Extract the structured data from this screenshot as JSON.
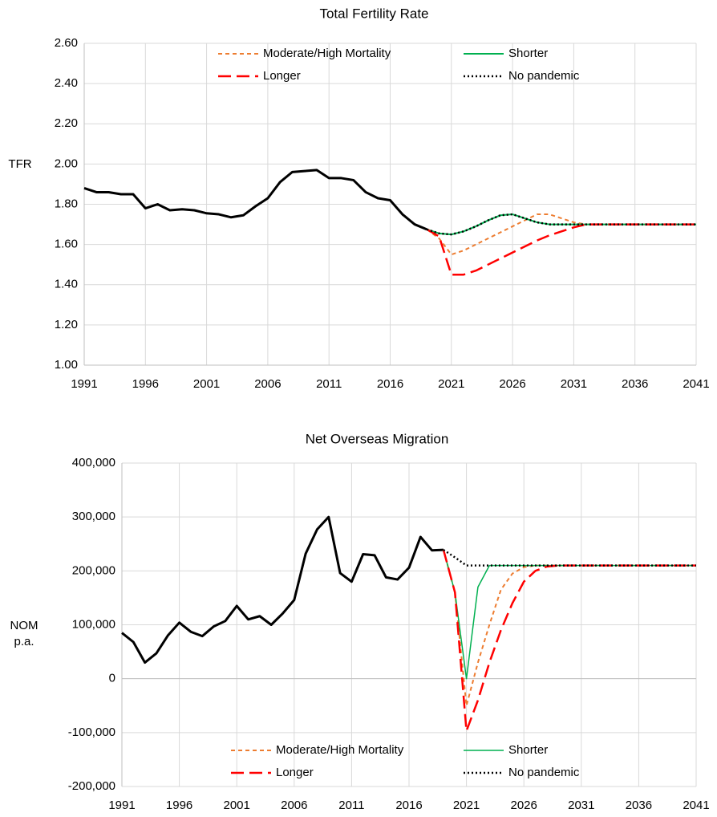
{
  "chart_data": [
    {
      "type": "line",
      "title": "Total Fertility Rate",
      "ylabel": "TFR",
      "x": [
        1991,
        1992,
        1993,
        1994,
        1995,
        1996,
        1997,
        1998,
        1999,
        2000,
        2001,
        2002,
        2003,
        2004,
        2005,
        2006,
        2007,
        2008,
        2009,
        2010,
        2011,
        2012,
        2013,
        2014,
        2015,
        2016,
        2017,
        2018,
        2019,
        2020,
        2021,
        2022,
        2023,
        2024,
        2025,
        2026,
        2027,
        2028,
        2029,
        2030,
        2031,
        2032,
        2033,
        2034,
        2035,
        2036,
        2037,
        2038,
        2039,
        2040,
        2041
      ],
      "series": [
        {
          "color": "#000000",
          "width": 3,
          "dash": "solid",
          "values": [
            1.88,
            1.86,
            1.86,
            1.85,
            1.85,
            1.78,
            1.8,
            1.77,
            1.775,
            1.77,
            1.755,
            1.75,
            1.735,
            1.745,
            1.79,
            1.83,
            1.91,
            1.96,
            1.965,
            1.97,
            1.93,
            1.93,
            1.92,
            1.86,
            1.83,
            1.82,
            1.75,
            1.7,
            1.675,
            null,
            null,
            null,
            null,
            null,
            null,
            null,
            null,
            null,
            null,
            null,
            null,
            null,
            null,
            null,
            null,
            null,
            null,
            null,
            null,
            null,
            null
          ]
        },
        {
          "name": "Moderate/High Mortality",
          "color": "#ed7d31",
          "width": 2,
          "dash": "dashed",
          "values": [
            null,
            null,
            null,
            null,
            null,
            null,
            null,
            null,
            null,
            null,
            null,
            null,
            null,
            null,
            null,
            null,
            null,
            null,
            null,
            null,
            null,
            null,
            null,
            null,
            null,
            null,
            null,
            null,
            1.675,
            1.63,
            1.55,
            1.57,
            1.6,
            1.63,
            1.66,
            1.69,
            1.72,
            1.75,
            1.75,
            1.73,
            1.71,
            1.7,
            1.7,
            1.7,
            1.7,
            1.7,
            1.7,
            1.7,
            1.7,
            1.7,
            1.7
          ]
        },
        {
          "name": "Shorter",
          "color": "#00b050",
          "width": 2,
          "dash": "solid",
          "values": [
            null,
            null,
            null,
            null,
            null,
            null,
            null,
            null,
            null,
            null,
            null,
            null,
            null,
            null,
            null,
            null,
            null,
            null,
            null,
            null,
            null,
            null,
            null,
            null,
            null,
            null,
            null,
            null,
            1.675,
            1.655,
            1.65,
            1.665,
            1.69,
            1.72,
            1.745,
            1.75,
            1.73,
            1.71,
            1.7,
            1.7,
            1.7,
            1.7,
            1.7,
            1.7,
            1.7,
            1.7,
            1.7,
            1.7,
            1.7,
            1.7,
            1.7
          ]
        },
        {
          "name": "Longer",
          "color": "#ff0000",
          "width": 2.5,
          "dash": "longdash",
          "values": [
            null,
            null,
            null,
            null,
            null,
            null,
            null,
            null,
            null,
            null,
            null,
            null,
            null,
            null,
            null,
            null,
            null,
            null,
            null,
            null,
            null,
            null,
            null,
            null,
            null,
            null,
            null,
            null,
            1.675,
            1.64,
            1.45,
            1.45,
            1.47,
            1.5,
            1.53,
            1.56,
            1.59,
            1.62,
            1.645,
            1.665,
            1.685,
            1.7,
            1.7,
            1.7,
            1.7,
            1.7,
            1.7,
            1.7,
            1.7,
            1.7,
            1.7
          ]
        },
        {
          "name": "No pandemic",
          "color": "#000000",
          "width": 2.5,
          "dash": "dotted",
          "values": [
            null,
            null,
            null,
            null,
            null,
            null,
            null,
            null,
            null,
            null,
            null,
            null,
            null,
            null,
            null,
            null,
            null,
            null,
            null,
            null,
            null,
            null,
            null,
            null,
            null,
            null,
            null,
            null,
            1.675,
            1.655,
            1.65,
            1.665,
            1.69,
            1.72,
            1.745,
            1.75,
            1.73,
            1.71,
            1.7,
            1.7,
            1.7,
            1.7,
            1.7,
            1.7,
            1.7,
            1.7,
            1.7,
            1.7,
            1.7,
            1.7,
            1.7
          ]
        }
      ],
      "xlim": [
        1991,
        2041
      ],
      "xticks": [
        1991,
        1996,
        2001,
        2006,
        2011,
        2016,
        2021,
        2026,
        2031,
        2036,
        2041
      ],
      "ylim": [
        1.0,
        2.6
      ],
      "yticks": [
        {
          "value": 1.0,
          "label": "1.00"
        },
        {
          "value": 1.2,
          "label": "1.20"
        },
        {
          "value": 1.4,
          "label": "1.40"
        },
        {
          "value": 1.6,
          "label": "1.60"
        },
        {
          "value": 1.8,
          "label": "1.80"
        },
        {
          "value": 2.0,
          "label": "2.00"
        },
        {
          "value": 2.2,
          "label": "2.20"
        },
        {
          "value": 2.4,
          "label": "2.40"
        },
        {
          "value": 2.6,
          "label": "2.60"
        }
      ],
      "grid": true,
      "legend": "upper center"
    },
    {
      "type": "line",
      "title": "Net Overseas Migration",
      "ylabel": "NOM p.a.",
      "x": [
        1991,
        1992,
        1993,
        1994,
        1995,
        1996,
        1997,
        1998,
        1999,
        2000,
        2001,
        2002,
        2003,
        2004,
        2005,
        2006,
        2007,
        2008,
        2009,
        2010,
        2011,
        2012,
        2013,
        2014,
        2015,
        2016,
        2017,
        2018,
        2019,
        2020,
        2021,
        2022,
        2023,
        2024,
        2025,
        2026,
        2027,
        2028,
        2029,
        2030,
        2031,
        2032,
        2033,
        2034,
        2035,
        2036,
        2037,
        2038,
        2039,
        2040,
        2041
      ],
      "series": [
        {
          "color": "#000000",
          "width": 3,
          "dash": "solid",
          "values": [
            85000,
            68000,
            30000,
            47000,
            80000,
            104000,
            87000,
            79000,
            97000,
            107000,
            135000,
            110000,
            116000,
            100000,
            121000,
            146000,
            232000,
            277000,
            300000,
            196000,
            180000,
            231000,
            229000,
            188000,
            184000,
            206000,
            263000,
            238000,
            239000,
            null,
            null,
            null,
            null,
            null,
            null,
            null,
            null,
            null,
            null,
            null,
            null,
            null,
            null,
            null,
            null,
            null,
            null,
            null,
            null,
            null,
            null
          ]
        },
        {
          "name": "Moderate/High Mortality",
          "color": "#ed7d31",
          "width": 2,
          "dash": "dashed",
          "values": [
            null,
            null,
            null,
            null,
            null,
            null,
            null,
            null,
            null,
            null,
            null,
            null,
            null,
            null,
            null,
            null,
            null,
            null,
            null,
            null,
            null,
            null,
            null,
            null,
            null,
            null,
            null,
            null,
            239000,
            160000,
            -50000,
            30000,
            100000,
            165000,
            195000,
            207000,
            210000,
            210000,
            210000,
            210000,
            210000,
            210000,
            210000,
            210000,
            210000,
            210000,
            210000,
            210000,
            210000,
            210000,
            210000
          ]
        },
        {
          "name": "Shorter",
          "color": "#00b050",
          "width": 1.5,
          "dash": "solid",
          "values": [
            null,
            null,
            null,
            null,
            null,
            null,
            null,
            null,
            null,
            null,
            null,
            null,
            null,
            null,
            null,
            null,
            null,
            null,
            null,
            null,
            null,
            null,
            null,
            null,
            null,
            null,
            null,
            null,
            239000,
            160000,
            0,
            170000,
            210000,
            210000,
            210000,
            210000,
            210000,
            210000,
            210000,
            210000,
            210000,
            210000,
            210000,
            210000,
            210000,
            210000,
            210000,
            210000,
            210000,
            210000,
            210000
          ]
        },
        {
          "name": "Longer",
          "color": "#ff0000",
          "width": 2.5,
          "dash": "longdash",
          "values": [
            null,
            null,
            null,
            null,
            null,
            null,
            null,
            null,
            null,
            null,
            null,
            null,
            null,
            null,
            null,
            null,
            null,
            null,
            null,
            null,
            null,
            null,
            null,
            null,
            null,
            null,
            null,
            null,
            239000,
            160000,
            -97000,
            -40000,
            30000,
            90000,
            140000,
            180000,
            200000,
            208000,
            210000,
            210000,
            210000,
            210000,
            210000,
            210000,
            210000,
            210000,
            210000,
            210000,
            210000,
            210000,
            210000
          ]
        },
        {
          "name": "No pandemic",
          "color": "#000000",
          "width": 2.5,
          "dash": "dotted",
          "values": [
            null,
            null,
            null,
            null,
            null,
            null,
            null,
            null,
            null,
            null,
            null,
            null,
            null,
            null,
            null,
            null,
            null,
            null,
            null,
            null,
            null,
            null,
            null,
            null,
            null,
            null,
            null,
            null,
            239000,
            225000,
            210000,
            210000,
            210000,
            210000,
            210000,
            210000,
            210000,
            210000,
            210000,
            210000,
            210000,
            210000,
            210000,
            210000,
            210000,
            210000,
            210000,
            210000,
            210000,
            210000,
            210000
          ]
        }
      ],
      "xlim": [
        1991,
        2041
      ],
      "xticks": [
        1991,
        1996,
        2001,
        2006,
        2011,
        2016,
        2021,
        2026,
        2031,
        2036,
        2041
      ],
      "ylim": [
        -200000,
        400000
      ],
      "yticks": [
        {
          "value": -200000,
          "label": "-200,000"
        },
        {
          "value": -100000,
          "label": "-100,000"
        },
        0,
        {
          "value": 100000,
          "label": "100,000"
        },
        {
          "value": 200000,
          "label": "200,000"
        },
        {
          "value": 300000,
          "label": "300,000"
        },
        {
          "value": 400000,
          "label": "400,000"
        }
      ],
      "grid": true,
      "legend": "lower center"
    }
  ]
}
